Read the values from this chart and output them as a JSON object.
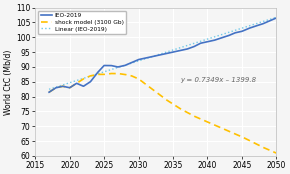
{
  "title": "",
  "ylabel": "World CtC (Mb/d)",
  "xlim": [
    2015,
    2050
  ],
  "ylim": [
    60,
    110
  ],
  "yticks": [
    60,
    65,
    70,
    75,
    80,
    85,
    90,
    95,
    100,
    105,
    110
  ],
  "xticks": [
    2015,
    2020,
    2025,
    2030,
    2035,
    2040,
    2045,
    2050
  ],
  "legend_labels": [
    "IEO-2019",
    "shock model (3100 Gb)",
    "Linear (IEO-2019)"
  ],
  "linear_eq": "y = 0.7349x – 1399.8",
  "linear_eq_x": 2036,
  "linear_eq_y": 85.5,
  "ieo_color": "#4472C4",
  "shock_color": "#FFC000",
  "linear_color": "#70C8E8",
  "background_color": "#f5f5f5",
  "grid_color": "#ffffff",
  "ieo_points_x": [
    2017,
    2018,
    2019,
    2020,
    2021,
    2022,
    2023,
    2024,
    2025,
    2026,
    2027,
    2028,
    2029,
    2030,
    2031,
    2032,
    2033,
    2034,
    2035,
    2036,
    2037,
    2038,
    2039,
    2040,
    2041,
    2042,
    2043,
    2044,
    2045,
    2046,
    2047,
    2048,
    2049,
    2050
  ],
  "ieo_points_y": [
    81.5,
    83.0,
    83.5,
    83.0,
    84.5,
    83.5,
    85.0,
    88.0,
    90.5,
    90.5,
    90.0,
    90.5,
    91.5,
    92.5,
    93.0,
    93.5,
    94.0,
    94.5,
    95.0,
    95.5,
    96.0,
    96.8,
    98.0,
    98.5,
    99.0,
    99.8,
    100.5,
    101.5,
    102.0,
    103.0,
    103.8,
    104.5,
    105.5,
    106.5
  ],
  "shock_points_x": [
    2017,
    2018,
    2019,
    2020,
    2021,
    2022,
    2023,
    2024,
    2025,
    2026,
    2027,
    2028,
    2029,
    2030,
    2032,
    2034,
    2036,
    2038,
    2040,
    2042,
    2045,
    2048,
    2050
  ],
  "shock_points_y": [
    81.5,
    83.0,
    83.5,
    83.0,
    84.5,
    86.0,
    87.0,
    87.5,
    87.5,
    87.8,
    87.8,
    87.5,
    87.0,
    86.0,
    82.5,
    79.0,
    76.0,
    73.5,
    71.5,
    69.5,
    66.5,
    63.0,
    61.0
  ],
  "linear_slope": 0.7349,
  "linear_intercept": -1399.8,
  "linear_x_start": 2017,
  "linear_x_end": 2050
}
